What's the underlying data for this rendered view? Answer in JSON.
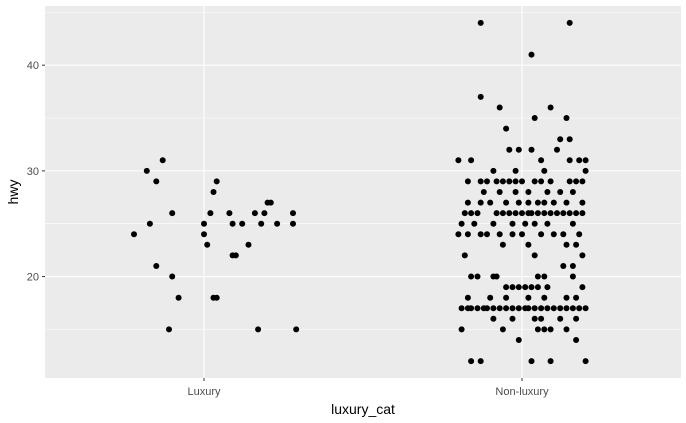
{
  "chart_data": {
    "type": "scatter",
    "title": "",
    "xlabel": "luxury_cat",
    "ylabel": "hwy",
    "categories": [
      "Luxury",
      "Non-luxury"
    ],
    "y_ticks": [
      20,
      30,
      40
    ],
    "ylim": [
      10.4,
      45.6
    ],
    "grid": true,
    "legend": "none",
    "colors": {
      "panel": "#EBEBEB",
      "grid": "#FFFFFF",
      "point": "#000000",
      "tick_text": "#4D4D4D"
    },
    "points": [
      {
        "x": "Luxury",
        "y": 31,
        "offset": -0.13
      },
      {
        "x": "Luxury",
        "y": 30,
        "offset": -0.18
      },
      {
        "x": "Luxury",
        "y": 29,
        "offset": -0.15
      },
      {
        "x": "Luxury",
        "y": 29,
        "offset": 0.04
      },
      {
        "x": "Luxury",
        "y": 28,
        "offset": 0.03
      },
      {
        "x": "Luxury",
        "y": 27,
        "offset": 0.2
      },
      {
        "x": "Luxury",
        "y": 27,
        "offset": 0.21
      },
      {
        "x": "Luxury",
        "y": 26,
        "offset": -0.1
      },
      {
        "x": "Luxury",
        "y": 26,
        "offset": 0.02
      },
      {
        "x": "Luxury",
        "y": 26,
        "offset": 0.08
      },
      {
        "x": "Luxury",
        "y": 26,
        "offset": 0.16
      },
      {
        "x": "Luxury",
        "y": 26,
        "offset": 0.19
      },
      {
        "x": "Luxury",
        "y": 26,
        "offset": 0.28
      },
      {
        "x": "Luxury",
        "y": 25,
        "offset": -0.17
      },
      {
        "x": "Luxury",
        "y": 25,
        "offset": 0.0
      },
      {
        "x": "Luxury",
        "y": 25,
        "offset": 0.09
      },
      {
        "x": "Luxury",
        "y": 25,
        "offset": 0.12
      },
      {
        "x": "Luxury",
        "y": 25,
        "offset": 0.18
      },
      {
        "x": "Luxury",
        "y": 25,
        "offset": 0.23
      },
      {
        "x": "Luxury",
        "y": 25,
        "offset": 0.28
      },
      {
        "x": "Luxury",
        "y": 24,
        "offset": -0.22
      },
      {
        "x": "Luxury",
        "y": 24,
        "offset": 0.0
      },
      {
        "x": "Luxury",
        "y": 23,
        "offset": 0.01
      },
      {
        "x": "Luxury",
        "y": 23,
        "offset": 0.14
      },
      {
        "x": "Luxury",
        "y": 22,
        "offset": 0.09
      },
      {
        "x": "Luxury",
        "y": 22,
        "offset": 0.1
      },
      {
        "x": "Luxury",
        "y": 21,
        "offset": -0.15
      },
      {
        "x": "Luxury",
        "y": 20,
        "offset": -0.1
      },
      {
        "x": "Luxury",
        "y": 18,
        "offset": -0.08
      },
      {
        "x": "Luxury",
        "y": 18,
        "offset": 0.03
      },
      {
        "x": "Luxury",
        "y": 18,
        "offset": 0.04
      },
      {
        "x": "Luxury",
        "y": 15,
        "offset": -0.11
      },
      {
        "x": "Luxury",
        "y": 15,
        "offset": 0.17
      },
      {
        "x": "Luxury",
        "y": 15,
        "offset": 0.29
      },
      {
        "x": "Non-luxury",
        "y": 44,
        "offset": -0.13
      },
      {
        "x": "Non-luxury",
        "y": 44,
        "offset": 0.15
      },
      {
        "x": "Non-luxury",
        "y": 41,
        "offset": 0.03
      },
      {
        "x": "Non-luxury",
        "y": 37,
        "offset": -0.13
      },
      {
        "x": "Non-luxury",
        "y": 36,
        "offset": -0.07
      },
      {
        "x": "Non-luxury",
        "y": 36,
        "offset": 0.09
      },
      {
        "x": "Non-luxury",
        "y": 35,
        "offset": 0.04
      },
      {
        "x": "Non-luxury",
        "y": 35,
        "offset": 0.14
      },
      {
        "x": "Non-luxury",
        "y": 34,
        "offset": -0.05
      },
      {
        "x": "Non-luxury",
        "y": 33,
        "offset": 0.12
      },
      {
        "x": "Non-luxury",
        "y": 33,
        "offset": 0.15
      },
      {
        "x": "Non-luxury",
        "y": 32,
        "offset": -0.04
      },
      {
        "x": "Non-luxury",
        "y": 32,
        "offset": -0.01
      },
      {
        "x": "Non-luxury",
        "y": 32,
        "offset": 0.03
      },
      {
        "x": "Non-luxury",
        "y": 32,
        "offset": 0.11
      },
      {
        "x": "Non-luxury",
        "y": 31,
        "offset": -0.2
      },
      {
        "x": "Non-luxury",
        "y": 31,
        "offset": -0.16
      },
      {
        "x": "Non-luxury",
        "y": 31,
        "offset": 0.06
      },
      {
        "x": "Non-luxury",
        "y": 31,
        "offset": 0.15
      },
      {
        "x": "Non-luxury",
        "y": 31,
        "offset": 0.18
      },
      {
        "x": "Non-luxury",
        "y": 31,
        "offset": 0.2
      },
      {
        "x": "Non-luxury",
        "y": 30,
        "offset": -0.09
      },
      {
        "x": "Non-luxury",
        "y": 30,
        "offset": -0.02
      },
      {
        "x": "Non-luxury",
        "y": 30,
        "offset": 0.07
      },
      {
        "x": "Non-luxury",
        "y": 30,
        "offset": 0.2
      },
      {
        "x": "Non-luxury",
        "y": 29,
        "offset": -0.17
      },
      {
        "x": "Non-luxury",
        "y": 29,
        "offset": -0.13
      },
      {
        "x": "Non-luxury",
        "y": 29,
        "offset": -0.11
      },
      {
        "x": "Non-luxury",
        "y": 29,
        "offset": -0.08
      },
      {
        "x": "Non-luxury",
        "y": 29,
        "offset": -0.06
      },
      {
        "x": "Non-luxury",
        "y": 29,
        "offset": -0.04
      },
      {
        "x": "Non-luxury",
        "y": 29,
        "offset": -0.02
      },
      {
        "x": "Non-luxury",
        "y": 29,
        "offset": 0.0
      },
      {
        "x": "Non-luxury",
        "y": 29,
        "offset": 0.04
      },
      {
        "x": "Non-luxury",
        "y": 29,
        "offset": 0.06
      },
      {
        "x": "Non-luxury",
        "y": 29,
        "offset": 0.09
      },
      {
        "x": "Non-luxury",
        "y": 29,
        "offset": 0.15
      },
      {
        "x": "Non-luxury",
        "y": 29,
        "offset": 0.17
      },
      {
        "x": "Non-luxury",
        "y": 29,
        "offset": 0.19
      },
      {
        "x": "Non-luxury",
        "y": 28,
        "offset": -0.12
      },
      {
        "x": "Non-luxury",
        "y": 28,
        "offset": -0.07
      },
      {
        "x": "Non-luxury",
        "y": 28,
        "offset": -0.02
      },
      {
        "x": "Non-luxury",
        "y": 28,
        "offset": 0.02
      },
      {
        "x": "Non-luxury",
        "y": 28,
        "offset": 0.08
      },
      {
        "x": "Non-luxury",
        "y": 28,
        "offset": 0.12
      },
      {
        "x": "Non-luxury",
        "y": 28,
        "offset": 0.16
      },
      {
        "x": "Non-luxury",
        "y": 27,
        "offset": -0.17
      },
      {
        "x": "Non-luxury",
        "y": 27,
        "offset": -0.13
      },
      {
        "x": "Non-luxury",
        "y": 27,
        "offset": -0.1
      },
      {
        "x": "Non-luxury",
        "y": 27,
        "offset": -0.05
      },
      {
        "x": "Non-luxury",
        "y": 27,
        "offset": -0.01
      },
      {
        "x": "Non-luxury",
        "y": 27,
        "offset": 0.02
      },
      {
        "x": "Non-luxury",
        "y": 27,
        "offset": 0.05
      },
      {
        "x": "Non-luxury",
        "y": 27,
        "offset": 0.07
      },
      {
        "x": "Non-luxury",
        "y": 27,
        "offset": 0.1
      },
      {
        "x": "Non-luxury",
        "y": 27,
        "offset": 0.14
      },
      {
        "x": "Non-luxury",
        "y": 27,
        "offset": 0.19
      },
      {
        "x": "Non-luxury",
        "y": 26,
        "offset": -0.18
      },
      {
        "x": "Non-luxury",
        "y": 26,
        "offset": -0.16
      },
      {
        "x": "Non-luxury",
        "y": 26,
        "offset": -0.14
      },
      {
        "x": "Non-luxury",
        "y": 26,
        "offset": -0.08
      },
      {
        "x": "Non-luxury",
        "y": 26,
        "offset": -0.06
      },
      {
        "x": "Non-luxury",
        "y": 26,
        "offset": -0.04
      },
      {
        "x": "Non-luxury",
        "y": 26,
        "offset": -0.02
      },
      {
        "x": "Non-luxury",
        "y": 26,
        "offset": 0.0
      },
      {
        "x": "Non-luxury",
        "y": 26,
        "offset": 0.02
      },
      {
        "x": "Non-luxury",
        "y": 26,
        "offset": 0.03
      },
      {
        "x": "Non-luxury",
        "y": 26,
        "offset": 0.05
      },
      {
        "x": "Non-luxury",
        "y": 26,
        "offset": 0.07
      },
      {
        "x": "Non-luxury",
        "y": 26,
        "offset": 0.09
      },
      {
        "x": "Non-luxury",
        "y": 26,
        "offset": 0.11
      },
      {
        "x": "Non-luxury",
        "y": 26,
        "offset": 0.13
      },
      {
        "x": "Non-luxury",
        "y": 26,
        "offset": 0.15
      },
      {
        "x": "Non-luxury",
        "y": 26,
        "offset": 0.17
      },
      {
        "x": "Non-luxury",
        "y": 26,
        "offset": 0.19
      },
      {
        "x": "Non-luxury",
        "y": 25,
        "offset": -0.19
      },
      {
        "x": "Non-luxury",
        "y": 25,
        "offset": -0.15
      },
      {
        "x": "Non-luxury",
        "y": 25,
        "offset": -0.09
      },
      {
        "x": "Non-luxury",
        "y": 25,
        "offset": -0.03
      },
      {
        "x": "Non-luxury",
        "y": 25,
        "offset": 0.01
      },
      {
        "x": "Non-luxury",
        "y": 25,
        "offset": 0.04
      },
      {
        "x": "Non-luxury",
        "y": 25,
        "offset": 0.08
      },
      {
        "x": "Non-luxury",
        "y": 25,
        "offset": 0.16
      },
      {
        "x": "Non-luxury",
        "y": 24,
        "offset": -0.2
      },
      {
        "x": "Non-luxury",
        "y": 24,
        "offset": -0.17
      },
      {
        "x": "Non-luxury",
        "y": 24,
        "offset": -0.13
      },
      {
        "x": "Non-luxury",
        "y": 24,
        "offset": -0.11
      },
      {
        "x": "Non-luxury",
        "y": 24,
        "offset": -0.07
      },
      {
        "x": "Non-luxury",
        "y": 24,
        "offset": -0.03
      },
      {
        "x": "Non-luxury",
        "y": 24,
        "offset": 0.0
      },
      {
        "x": "Non-luxury",
        "y": 24,
        "offset": 0.06
      },
      {
        "x": "Non-luxury",
        "y": 24,
        "offset": 0.1
      },
      {
        "x": "Non-luxury",
        "y": 24,
        "offset": 0.13
      },
      {
        "x": "Non-luxury",
        "y": 24,
        "offset": 0.18
      },
      {
        "x": "Non-luxury",
        "y": 23,
        "offset": -0.06
      },
      {
        "x": "Non-luxury",
        "y": 23,
        "offset": 0.02
      },
      {
        "x": "Non-luxury",
        "y": 23,
        "offset": 0.14
      },
      {
        "x": "Non-luxury",
        "y": 23,
        "offset": 0.17
      },
      {
        "x": "Non-luxury",
        "y": 22,
        "offset": -0.18
      },
      {
        "x": "Non-luxury",
        "y": 22,
        "offset": 0.04
      },
      {
        "x": "Non-luxury",
        "y": 22,
        "offset": 0.19
      },
      {
        "x": "Non-luxury",
        "y": 21,
        "offset": 0.13
      },
      {
        "x": "Non-luxury",
        "y": 21,
        "offset": 0.16
      },
      {
        "x": "Non-luxury",
        "y": 20,
        "offset": -0.16
      },
      {
        "x": "Non-luxury",
        "y": 20,
        "offset": -0.14
      },
      {
        "x": "Non-luxury",
        "y": 20,
        "offset": -0.09
      },
      {
        "x": "Non-luxury",
        "y": 20,
        "offset": -0.08
      },
      {
        "x": "Non-luxury",
        "y": 20,
        "offset": 0.05
      },
      {
        "x": "Non-luxury",
        "y": 20,
        "offset": 0.07
      },
      {
        "x": "Non-luxury",
        "y": 20,
        "offset": 0.16
      },
      {
        "x": "Non-luxury",
        "y": 19,
        "offset": -0.05
      },
      {
        "x": "Non-luxury",
        "y": 19,
        "offset": -0.03
      },
      {
        "x": "Non-luxury",
        "y": 19,
        "offset": -0.01
      },
      {
        "x": "Non-luxury",
        "y": 19,
        "offset": 0.01
      },
      {
        "x": "Non-luxury",
        "y": 19,
        "offset": 0.03
      },
      {
        "x": "Non-luxury",
        "y": 19,
        "offset": 0.05
      },
      {
        "x": "Non-luxury",
        "y": 19,
        "offset": 0.08
      },
      {
        "x": "Non-luxury",
        "y": 19,
        "offset": 0.19
      },
      {
        "x": "Non-luxury",
        "y": 18,
        "offset": -0.17
      },
      {
        "x": "Non-luxury",
        "y": 18,
        "offset": -0.1
      },
      {
        "x": "Non-luxury",
        "y": 18,
        "offset": -0.05
      },
      {
        "x": "Non-luxury",
        "y": 18,
        "offset": 0.02
      },
      {
        "x": "Non-luxury",
        "y": 18,
        "offset": 0.07
      },
      {
        "x": "Non-luxury",
        "y": 18,
        "offset": 0.14
      },
      {
        "x": "Non-luxury",
        "y": 18,
        "offset": 0.17
      },
      {
        "x": "Non-luxury",
        "y": 17,
        "offset": -0.19
      },
      {
        "x": "Non-luxury",
        "y": 17,
        "offset": -0.17
      },
      {
        "x": "Non-luxury",
        "y": 17,
        "offset": -0.16
      },
      {
        "x": "Non-luxury",
        "y": 17,
        "offset": -0.14
      },
      {
        "x": "Non-luxury",
        "y": 17,
        "offset": -0.12
      },
      {
        "x": "Non-luxury",
        "y": 17,
        "offset": -0.11
      },
      {
        "x": "Non-luxury",
        "y": 17,
        "offset": -0.09
      },
      {
        "x": "Non-luxury",
        "y": 17,
        "offset": -0.07
      },
      {
        "x": "Non-luxury",
        "y": 17,
        "offset": -0.05
      },
      {
        "x": "Non-luxury",
        "y": 17,
        "offset": -0.03
      },
      {
        "x": "Non-luxury",
        "y": 17,
        "offset": -0.01
      },
      {
        "x": "Non-luxury",
        "y": 17,
        "offset": 0.01
      },
      {
        "x": "Non-luxury",
        "y": 17,
        "offset": 0.02
      },
      {
        "x": "Non-luxury",
        "y": 17,
        "offset": 0.04
      },
      {
        "x": "Non-luxury",
        "y": 17,
        "offset": 0.06
      },
      {
        "x": "Non-luxury",
        "y": 17,
        "offset": 0.08
      },
      {
        "x": "Non-luxury",
        "y": 17,
        "offset": 0.1
      },
      {
        "x": "Non-luxury",
        "y": 17,
        "offset": 0.12
      },
      {
        "x": "Non-luxury",
        "y": 17,
        "offset": 0.14
      },
      {
        "x": "Non-luxury",
        "y": 17,
        "offset": 0.16
      },
      {
        "x": "Non-luxury",
        "y": 17,
        "offset": 0.18
      },
      {
        "x": "Non-luxury",
        "y": 17,
        "offset": 0.2
      },
      {
        "x": "Non-luxury",
        "y": 16,
        "offset": -0.09
      },
      {
        "x": "Non-luxury",
        "y": 16,
        "offset": -0.03
      },
      {
        "x": "Non-luxury",
        "y": 16,
        "offset": 0.04
      },
      {
        "x": "Non-luxury",
        "y": 16,
        "offset": 0.06
      },
      {
        "x": "Non-luxury",
        "y": 16,
        "offset": 0.12
      },
      {
        "x": "Non-luxury",
        "y": 16,
        "offset": 0.17
      },
      {
        "x": "Non-luxury",
        "y": 15,
        "offset": -0.19
      },
      {
        "x": "Non-luxury",
        "y": 15,
        "offset": -0.06
      },
      {
        "x": "Non-luxury",
        "y": 15,
        "offset": 0.05
      },
      {
        "x": "Non-luxury",
        "y": 15,
        "offset": 0.07
      },
      {
        "x": "Non-luxury",
        "y": 15,
        "offset": 0.09
      },
      {
        "x": "Non-luxury",
        "y": 15,
        "offset": 0.14
      },
      {
        "x": "Non-luxury",
        "y": 14,
        "offset": -0.01
      },
      {
        "x": "Non-luxury",
        "y": 14,
        "offset": 0.17
      },
      {
        "x": "Non-luxury",
        "y": 12,
        "offset": -0.16
      },
      {
        "x": "Non-luxury",
        "y": 12,
        "offset": -0.13
      },
      {
        "x": "Non-luxury",
        "y": 12,
        "offset": 0.03
      },
      {
        "x": "Non-luxury",
        "y": 12,
        "offset": 0.09
      },
      {
        "x": "Non-luxury",
        "y": 12,
        "offset": 0.2
      }
    ]
  }
}
